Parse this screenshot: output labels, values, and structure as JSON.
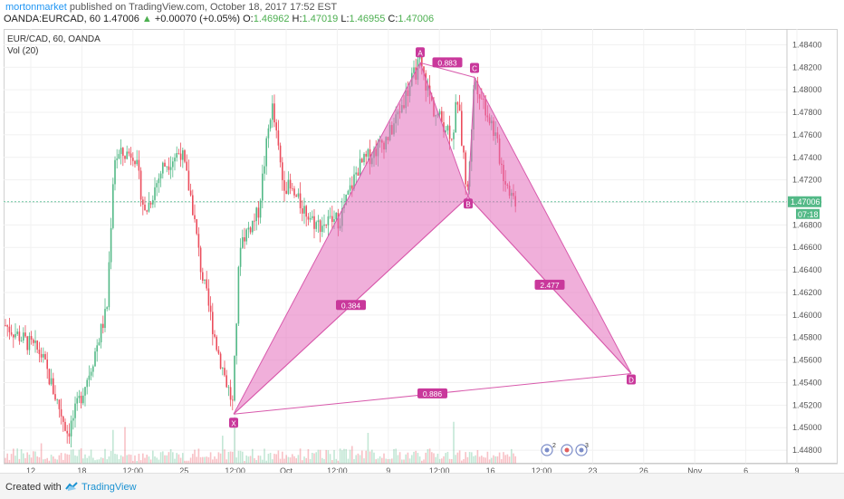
{
  "header": {
    "author": "mortonmarket",
    "published_text": " published on TradingView.com, October 18, 2017 17:52 EST",
    "symbol": "OANDA:EURCAD, 60",
    "last": "1.47006",
    "arrow": "▲",
    "change": "+0.00070 (+0.05%)",
    "o_label": "O:",
    "o": "1.46962",
    "h_label": "H:",
    "h": "1.47019",
    "l_label": "L:",
    "l": "1.46955",
    "c_label": "C:",
    "c": "1.47006"
  },
  "legend": {
    "instrument": "EUR/CAD, 60, OANDA",
    "volume": "Vol (20)"
  },
  "price_axis": {
    "ticks": [
      "1.48400",
      "1.48200",
      "1.48000",
      "1.47800",
      "1.47600",
      "1.47400",
      "1.47200",
      "1.47000",
      "1.46800",
      "1.46600",
      "1.46400",
      "1.46200",
      "1.46000",
      "1.45800",
      "1.45600",
      "1.45400",
      "1.45200",
      "1.45000",
      "1.44800"
    ],
    "current_price": "1.47006",
    "countdown": "07:18"
  },
  "time_axis": {
    "ticks": [
      "12",
      "18",
      "12:00",
      "25",
      "12:00",
      "Oct",
      "12:00",
      "9",
      "12:00",
      "16",
      "12:00",
      "23",
      "26",
      "Nov",
      "6",
      "9"
    ]
  },
  "chart_data": {
    "type": "line",
    "title": "",
    "pattern": {
      "points": [
        {
          "label": "X",
          "price": 1.4512
        },
        {
          "label": "A",
          "price": 1.4824
        },
        {
          "label": "B",
          "price": 1.4705
        },
        {
          "label": "C",
          "price": 1.4811
        },
        {
          "label": "D",
          "price": 1.4548
        }
      ],
      "ratios": [
        {
          "segment": "XB",
          "value": "0.384"
        },
        {
          "segment": "AC",
          "value": "0.883"
        },
        {
          "segment": "BD",
          "value": "2.477"
        },
        {
          "segment": "XD",
          "value": "0.886"
        }
      ]
    },
    "ylim": [
      1.4468,
      1.4854
    ],
    "current_price": 1.47006,
    "fill_color": "#e46dbc",
    "line_color": "#d85aac",
    "bull_color": "#53b987",
    "bear_color": "#eb4d5c"
  },
  "events": [
    "2",
    "3"
  ],
  "footer": {
    "created_with": "Created with",
    "brand": "TradingView"
  }
}
